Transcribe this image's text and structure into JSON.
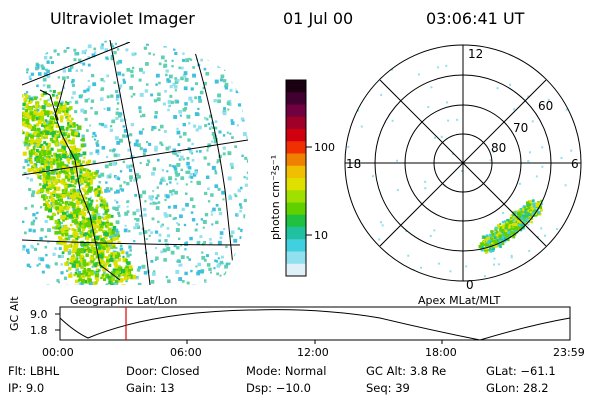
{
  "header": {
    "instrument": "Ultraviolet Imager",
    "date": "01 Jul 00",
    "time": "03:06:41 UT"
  },
  "colorbar": {
    "unit_label": "photon cm⁻²s⁻¹",
    "ticks": [
      "100",
      "10"
    ],
    "colors": [
      "#1a0010",
      "#400030",
      "#700040",
      "#a00028",
      "#d00010",
      "#f03000",
      "#f08000",
      "#f0c000",
      "#e0e000",
      "#a0e000",
      "#60d000",
      "#20c040",
      "#20c0a0",
      "#40d0e0",
      "#90e0f0",
      "#e0f0f8"
    ]
  },
  "geographic_panel": {
    "label": "Geographic Lat/Lon"
  },
  "polar_panel": {
    "label": "Apex MLat/MLT",
    "mlt_labels": {
      "top": "12",
      "left": "18",
      "right": "6",
      "bottom": "0"
    },
    "mlat_labels": [
      "60",
      "70",
      "80"
    ]
  },
  "altitude_plot": {
    "axis_label": "GC Alt",
    "y_ticks": [
      "9.0",
      "1.8"
    ],
    "x_ticks": [
      "00:00",
      "06:00",
      "12:00",
      "18:00",
      "23:59"
    ],
    "current_time_marker": "03:06",
    "marker_color": "#e00000"
  },
  "status": {
    "flt": {
      "label": "Flt:",
      "value": "LBHL"
    },
    "ip": {
      "label": "IP:",
      "value": "9.0"
    },
    "door": {
      "label": "Door:",
      "value": "Closed"
    },
    "gain": {
      "label": "Gain:",
      "value": "13"
    },
    "mode": {
      "label": "Mode:",
      "value": "Normal"
    },
    "dsp": {
      "label": "Dsp:",
      "value": "−10.0"
    },
    "gcalt": {
      "label": "GC Alt:",
      "value": "3.8 Re"
    },
    "seq": {
      "label": "Seq:",
      "value": "39"
    },
    "glat": {
      "label": "GLat:",
      "value": "−61.1"
    },
    "glon": {
      "label": "GLon:",
      "value": "28.2"
    }
  }
}
